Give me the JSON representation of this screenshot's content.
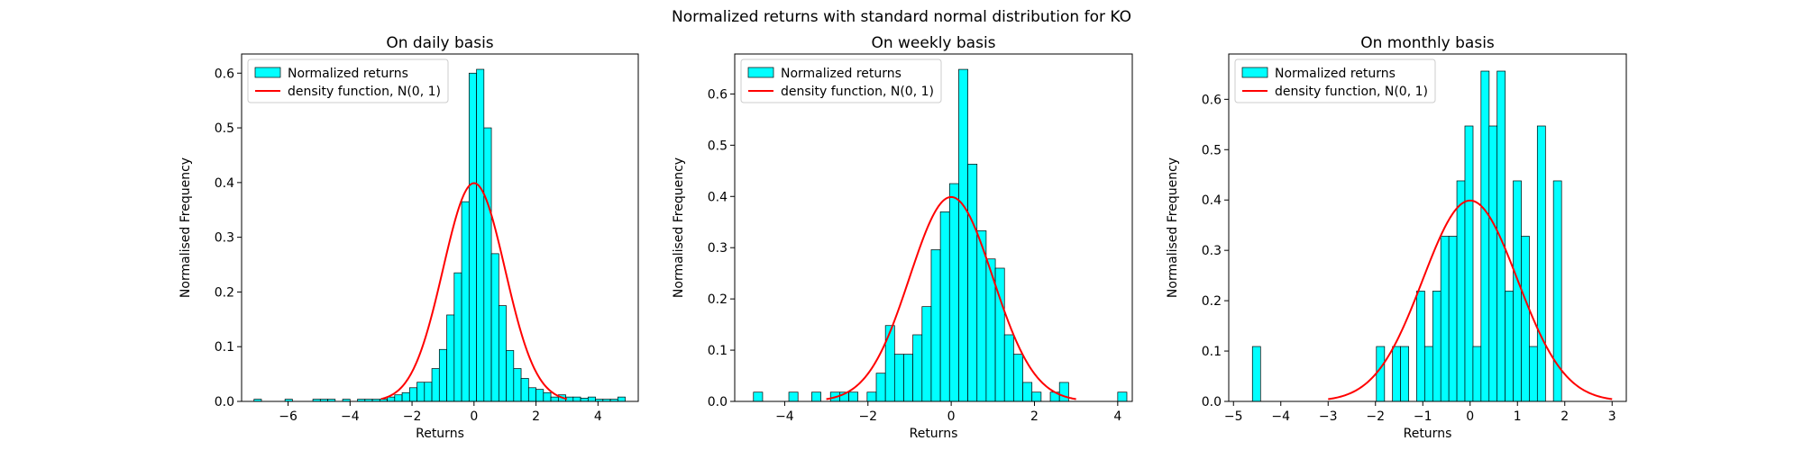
{
  "figure": {
    "suptitle": "Normalized returns with standard normal distribution for KO"
  },
  "colors": {
    "bar_fill": "#00ffff",
    "bar_edge": "#000000",
    "curve": "#ff0000"
  },
  "chart_data": [
    {
      "type": "bar",
      "title": "On daily basis",
      "xlabel": "Returns",
      "ylabel": "Normalised Frequency",
      "xlim": [
        -7.5,
        5.3
      ],
      "ylim": [
        0,
        0.635
      ],
      "xticks": [
        -6,
        -4,
        -2,
        0,
        2,
        4
      ],
      "yticks": [
        0.0,
        0.1,
        0.2,
        0.3,
        0.4,
        0.5,
        0.6
      ],
      "legend": [
        "Normalized returns",
        "density function, N(0, 1)"
      ],
      "legend_position": "upper-left",
      "bin_width": 0.24,
      "bins": [
        [
          -7.1,
          0.004
        ],
        [
          -6.1,
          0.004
        ],
        [
          -5.2,
          0.004
        ],
        [
          -4.96,
          0.004
        ],
        [
          -4.72,
          0.004
        ],
        [
          -4.24,
          0.004
        ],
        [
          -3.76,
          0.004
        ],
        [
          -3.52,
          0.004
        ],
        [
          -3.28,
          0.004
        ],
        [
          -3.04,
          0.004
        ],
        [
          -2.8,
          0.008
        ],
        [
          -2.56,
          0.012
        ],
        [
          -2.32,
          0.016
        ],
        [
          -2.08,
          0.025
        ],
        [
          -1.84,
          0.035
        ],
        [
          -1.6,
          0.035
        ],
        [
          -1.36,
          0.06
        ],
        [
          -1.12,
          0.095
        ],
        [
          -0.88,
          0.158
        ],
        [
          -0.64,
          0.235
        ],
        [
          -0.4,
          0.365
        ],
        [
          -0.16,
          0.6
        ],
        [
          0.08,
          0.607
        ],
        [
          0.32,
          0.5
        ],
        [
          0.56,
          0.27
        ],
        [
          0.8,
          0.175
        ],
        [
          1.04,
          0.093
        ],
        [
          1.28,
          0.06
        ],
        [
          1.52,
          0.042
        ],
        [
          1.76,
          0.025
        ],
        [
          2.0,
          0.022
        ],
        [
          2.24,
          0.016
        ],
        [
          2.48,
          0.008
        ],
        [
          2.72,
          0.012
        ],
        [
          2.96,
          0.008
        ],
        [
          3.2,
          0.008
        ],
        [
          3.44,
          0.006
        ],
        [
          3.68,
          0.008
        ],
        [
          3.92,
          0.004
        ],
        [
          4.16,
          0.004
        ],
        [
          4.4,
          0.004
        ],
        [
          4.64,
          0.008
        ]
      ],
      "curve": {
        "from": -3,
        "to": 3,
        "mean": 0,
        "std": 1
      }
    },
    {
      "type": "bar",
      "title": "On weekly basis",
      "xlabel": "Returns",
      "ylabel": "Normalised Frequency",
      "xlim": [
        -5.2,
        4.35
      ],
      "ylim": [
        0,
        0.678
      ],
      "xticks": [
        -4,
        -2,
        0,
        2,
        4
      ],
      "yticks": [
        0.0,
        0.1,
        0.2,
        0.3,
        0.4,
        0.5,
        0.6
      ],
      "legend": [
        "Normalized returns",
        "density function, N(0, 1)"
      ],
      "legend_position": "upper-left",
      "bin_width": 0.22,
      "bins": [
        [
          -4.75,
          0.018
        ],
        [
          -3.9,
          0.018
        ],
        [
          -3.35,
          0.018
        ],
        [
          -2.9,
          0.018
        ],
        [
          -2.68,
          0.018
        ],
        [
          -2.46,
          0.018
        ],
        [
          -2.02,
          0.018
        ],
        [
          -1.8,
          0.055
        ],
        [
          -1.58,
          0.148
        ],
        [
          -1.36,
          0.092
        ],
        [
          -1.14,
          0.092
        ],
        [
          -0.92,
          0.13
        ],
        [
          -0.7,
          0.185
        ],
        [
          -0.48,
          0.296
        ],
        [
          -0.26,
          0.37
        ],
        [
          -0.04,
          0.425
        ],
        [
          0.18,
          0.648
        ],
        [
          0.4,
          0.463
        ],
        [
          0.62,
          0.333
        ],
        [
          0.84,
          0.278
        ],
        [
          1.06,
          0.26
        ],
        [
          1.28,
          0.13
        ],
        [
          1.5,
          0.092
        ],
        [
          1.72,
          0.037
        ],
        [
          1.94,
          0.018
        ],
        [
          2.38,
          0.018
        ],
        [
          2.6,
          0.037
        ],
        [
          4.0,
          0.018
        ]
      ],
      "curve": {
        "from": -3,
        "to": 3,
        "mean": 0,
        "std": 1
      }
    },
    {
      "type": "bar",
      "title": "On monthly basis",
      "xlabel": "Returns",
      "ylabel": "Normalised Frequency",
      "xlim": [
        -5.1,
        3.3
      ],
      "ylim": [
        0,
        0.69
      ],
      "xticks": [
        -5,
        -4,
        -3,
        -2,
        -1,
        0,
        1,
        2,
        3
      ],
      "yticks": [
        0.0,
        0.1,
        0.2,
        0.3,
        0.4,
        0.5,
        0.6
      ],
      "legend": [
        "Normalized returns",
        "density function, N(0, 1)"
      ],
      "legend_position": "upper-left",
      "bin_width": 0.172,
      "bins": [
        [
          -4.6,
          0.109
        ],
        [
          -1.98,
          0.109
        ],
        [
          -1.64,
          0.109
        ],
        [
          -1.47,
          0.109
        ],
        [
          -1.13,
          0.219
        ],
        [
          -0.96,
          0.109
        ],
        [
          -0.79,
          0.219
        ],
        [
          -0.62,
          0.328
        ],
        [
          -0.45,
          0.328
        ],
        [
          -0.28,
          0.438
        ],
        [
          -0.11,
          0.547
        ],
        [
          0.06,
          0.109
        ],
        [
          0.23,
          0.656
        ],
        [
          0.4,
          0.547
        ],
        [
          0.57,
          0.656
        ],
        [
          0.74,
          0.219
        ],
        [
          0.91,
          0.438
        ],
        [
          1.08,
          0.328
        ],
        [
          1.25,
          0.109
        ],
        [
          1.42,
          0.547
        ],
        [
          1.76,
          0.438
        ]
      ],
      "curve": {
        "from": -3,
        "to": 3,
        "mean": 0,
        "std": 1
      }
    }
  ]
}
